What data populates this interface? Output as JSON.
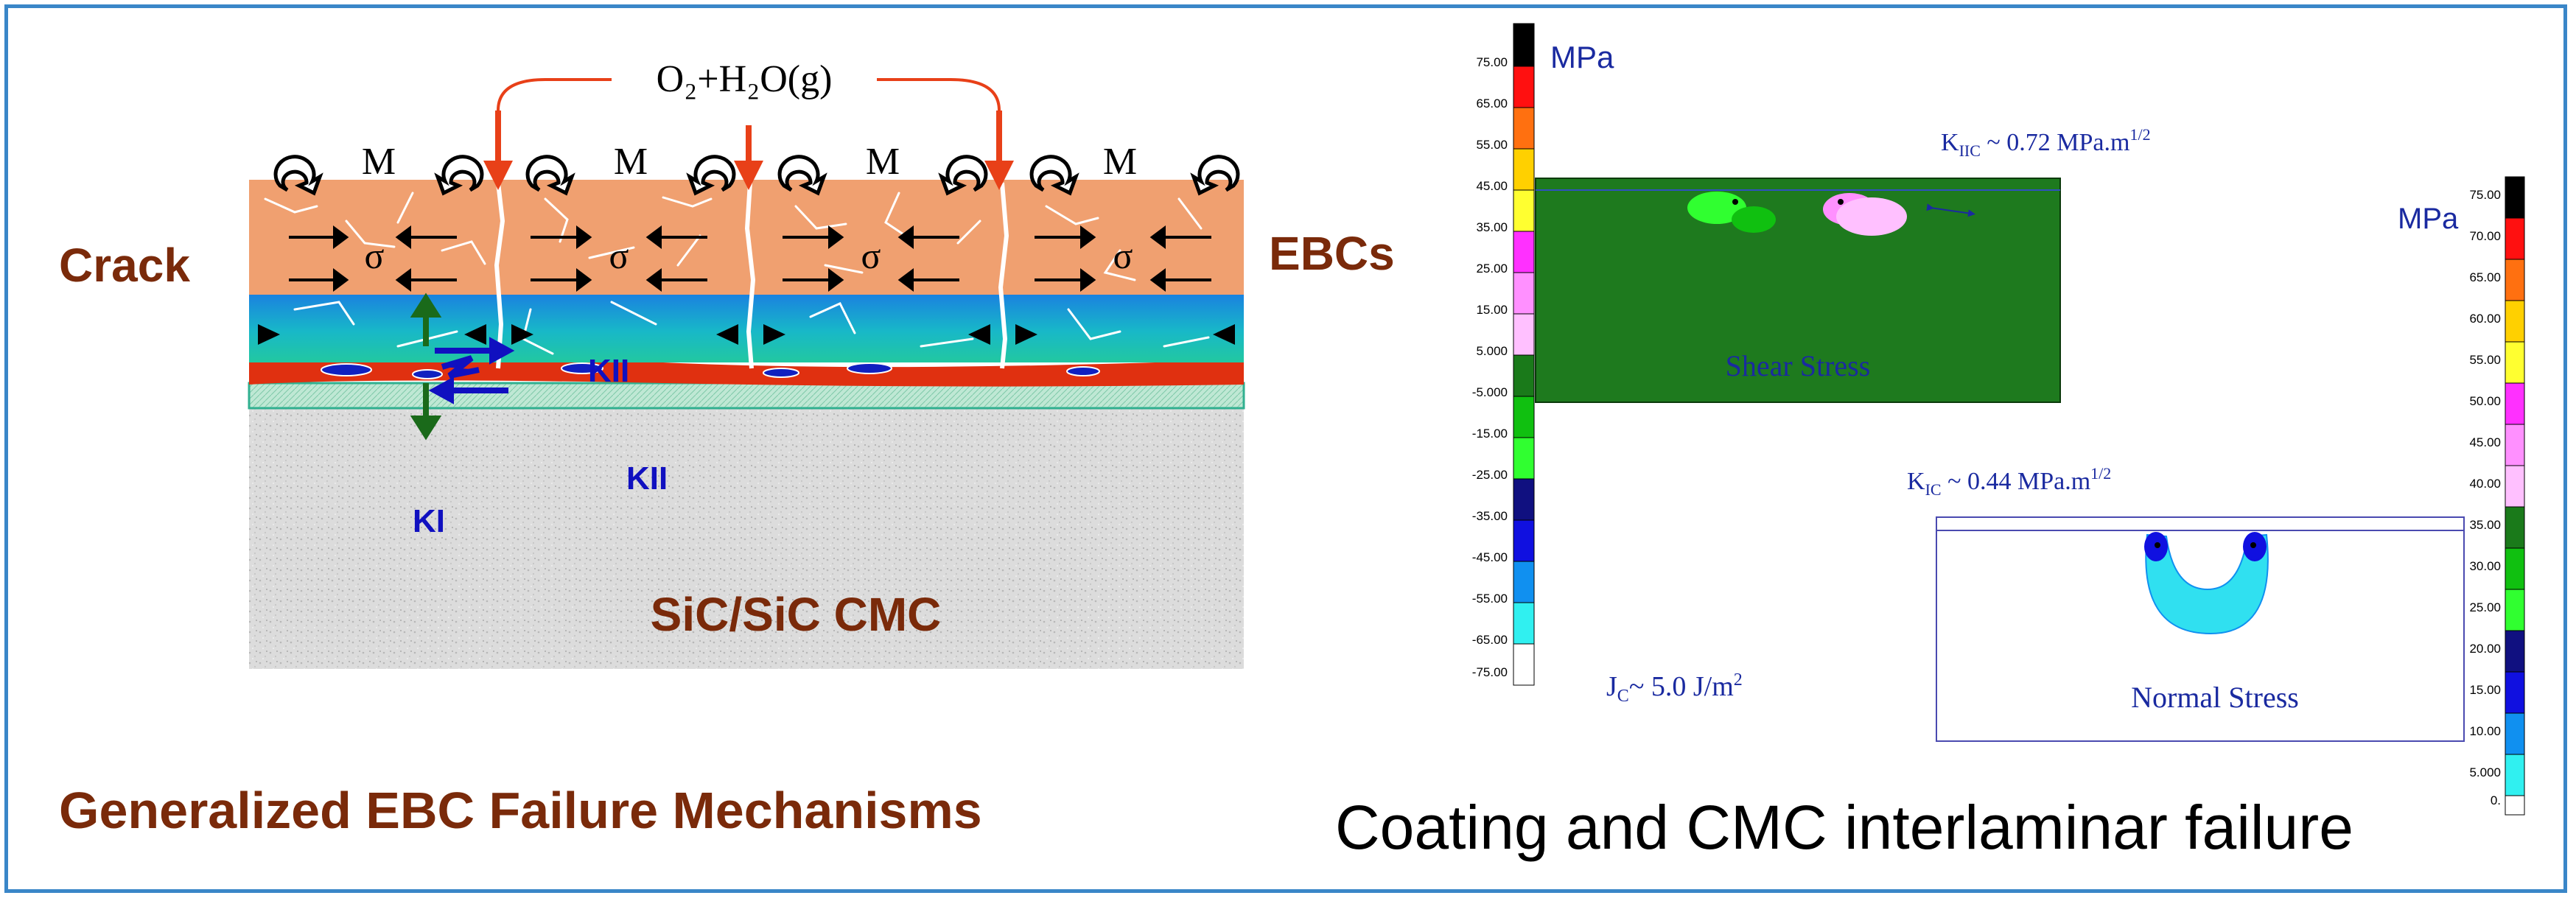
{
  "left": {
    "gas": "O₂+H₂O(g)",
    "moment_symbol": "M",
    "stress_symbol": "σ",
    "crack_label": "Crack",
    "ebc_label": "EBCs",
    "k2_upper": "KII",
    "k2_lower": "KII",
    "k1": "KI",
    "substrate": "SiC/SiC CMC",
    "caption": "Generalized EBC Failure Mechanisms",
    "colors": {
      "topcoat": "#f0a070",
      "midcoat": "#18b8c8",
      "bondcoat": "#e03010",
      "substrate": "#dcdcdc",
      "label_brown": "#7a2a0a",
      "k_blue": "#1010c0",
      "arrow_green": "#1a6a1a",
      "arrow_red": "#e84018"
    }
  },
  "right": {
    "left_unit": "MPa",
    "right_unit": "MPa",
    "left_scale": [
      "75.00",
      "65.00",
      "55.00",
      "45.00",
      "35.00",
      "25.00",
      "15.00",
      "5.000",
      "-5.000",
      "-15.00",
      "-25.00",
      "-35.00",
      "-45.00",
      "-55.00",
      "-65.00",
      "-75.00"
    ],
    "right_scale": [
      "75.00",
      "70.00",
      "65.00",
      "60.00",
      "55.00",
      "50.00",
      "45.00",
      "40.00",
      "35.00",
      "30.00",
      "25.00",
      "20.00",
      "15.00",
      "10.00",
      "5.000",
      "0."
    ],
    "k2c": "K",
    "k2c_sub": "IIC",
    "k2c_value": " ~ 0.72 MPa.m",
    "k2c_exp": "1/2",
    "k1c": "K",
    "k1c_sub": "IC",
    "k1c_value": " ~ 0.44 MPa.m",
    "k1c_exp": "1/2",
    "jc": "J",
    "jc_sub": "C",
    "jc_value": "~ 5.0 J/m",
    "jc_exp": "2",
    "shear_label": "Shear Stress",
    "normal_label": "Normal Stress",
    "caption": "Coating and CMC interlaminar failure",
    "colors": {
      "label_blue": "#1a2aa0",
      "shear_box": "#1e7a1e",
      "normal_lobe": "#30e0f0"
    }
  }
}
